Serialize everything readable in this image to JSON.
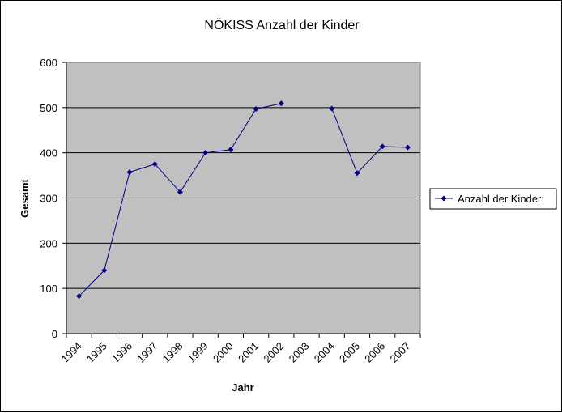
{
  "chart_data": {
    "type": "line",
    "title": "NÖKISS Anzahl der Kinder",
    "xlabel": "Jahr",
    "ylabel": "Gesamt",
    "categories": [
      "1994",
      "1995",
      "1996",
      "1997",
      "1998",
      "1999",
      "2000",
      "2001",
      "2002",
      "2003",
      "2004",
      "2005",
      "2006",
      "2007"
    ],
    "series": [
      {
        "name": "Anzahl der Kinder",
        "color": "#000080",
        "values": [
          83,
          140,
          357,
          375,
          313,
          400,
          407,
          497,
          509,
          null,
          498,
          355,
          414,
          412
        ]
      }
    ],
    "ylim": [
      0,
      600
    ],
    "yticks": [
      0,
      100,
      200,
      300,
      400,
      500,
      600
    ],
    "grid": true,
    "legend": "right",
    "plot_background": "#c0c0c0",
    "gridline_color": "#000000"
  }
}
